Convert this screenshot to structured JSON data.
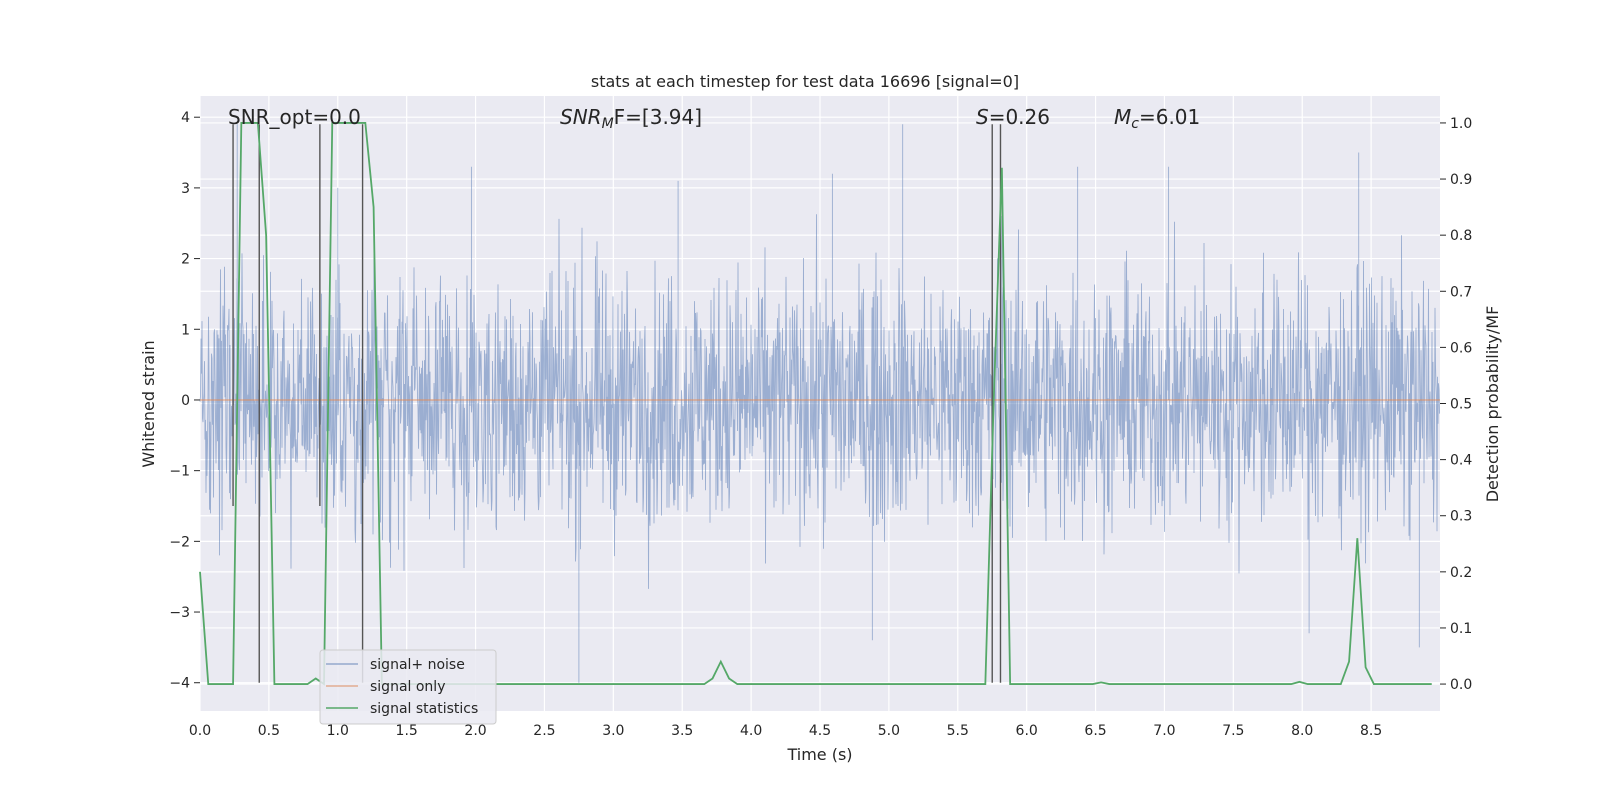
{
  "chart_data": {
    "type": "line",
    "title": "stats at each timestep for test data 16696 [signal=0]",
    "xlabel": "Time (s)",
    "ylabel": "Whitened strain",
    "ylabel_right": "Detection probability/MF",
    "xlim": [
      0.0,
      9.0
    ],
    "ylim": [
      -4.4,
      4.3
    ],
    "ylim_right": [
      -0.048,
      1.048
    ],
    "x_ticks": [
      "0.0",
      "0.5",
      "1.0",
      "1.5",
      "2.0",
      "2.5",
      "3.0",
      "3.5",
      "4.0",
      "4.5",
      "5.0",
      "5.5",
      "6.0",
      "6.5",
      "7.0",
      "7.5",
      "8.0",
      "8.5"
    ],
    "y_ticks": [
      "4",
      "3",
      "2",
      "1",
      "0",
      "−1",
      "−2",
      "−3",
      "−4"
    ],
    "y_ticks_right": [
      "1.0",
      "0.9",
      "0.8",
      "0.7",
      "0.6",
      "0.5",
      "0.4",
      "0.3",
      "0.2",
      "0.1",
      "0.0"
    ],
    "grid": true,
    "background": "#eaeaf2",
    "legend_location": "lower-left",
    "annotations": {
      "snr_opt": "SNR_opt=0.0",
      "snr_mf_base": "SNR",
      "snr_mf_sub": "M",
      "snr_mf_rest": "F=[3.94]",
      "s_italic": "S",
      "s_rest": "=0.26",
      "mc_base": "M",
      "mc_sub": "c",
      "mc_rest": "=6.01"
    },
    "series": [
      {
        "name": "signal+ noise",
        "color": "#4c72b0",
        "axis": "left",
        "description_values": {
          "typical_envelope": [
            -1.7,
            1.9
          ],
          "peaks": [
            {
              "x": 0.27,
              "y": 3.9
            },
            {
              "x": 1.0,
              "y": 3.0
            },
            {
              "x": 1.97,
              "y": 3.3
            },
            {
              "x": 3.47,
              "y": 3.1
            },
            {
              "x": 4.59,
              "y": 3.2
            },
            {
              "x": 5.1,
              "y": 3.9
            },
            {
              "x": 6.37,
              "y": 3.3
            },
            {
              "x": 7.03,
              "y": 3.3
            },
            {
              "x": 8.41,
              "y": 3.5
            },
            {
              "x": 2.75,
              "y": -4.0
            },
            {
              "x": 8.05,
              "y": -3.3
            },
            {
              "x": 8.85,
              "y": -3.5
            },
            {
              "x": 4.88,
              "y": -3.4
            },
            {
              "x": 5.75,
              "y": 2.5
            },
            {
              "x": 5.82,
              "y": 2.6
            }
          ]
        }
      },
      {
        "name": "signal only",
        "color": "#dd8452",
        "axis": "left",
        "x": [
          0.0,
          9.0
        ],
        "y": [
          0.0,
          0.0
        ]
      },
      {
        "name": "signal statistics",
        "color": "#55a868",
        "axis": "right",
        "x": [
          0.0,
          0.06,
          0.12,
          0.18,
          0.24,
          0.3,
          0.36,
          0.42,
          0.48,
          0.54,
          0.6,
          0.66,
          0.72,
          0.78,
          0.84,
          0.9,
          0.96,
          1.02,
          1.08,
          1.14,
          1.2,
          1.26,
          1.32,
          1.38,
          1.44,
          3.6,
          3.66,
          3.72,
          3.78,
          3.84,
          3.9,
          3.96,
          5.04,
          5.7,
          5.76,
          5.82,
          5.88,
          5.94,
          6.48,
          6.54,
          6.6,
          7.92,
          7.98,
          8.04,
          8.1,
          8.22,
          8.28,
          8.34,
          8.4,
          8.46,
          8.52,
          8.58,
          8.64,
          8.94
        ],
        "y": [
          0.2,
          0.0,
          0.0,
          0.0,
          0.0,
          1.0,
          1.0,
          1.0,
          0.8,
          0.0,
          0.0,
          0.0,
          0.0,
          0.0,
          0.01,
          0.0,
          1.0,
          1.0,
          1.0,
          1.0,
          1.0,
          0.85,
          0.0,
          0.0,
          0.0,
          0.0,
          0.0,
          0.01,
          0.04,
          0.01,
          0.0,
          0.0,
          0.0,
          0.0,
          0.5,
          0.92,
          0.0,
          0.0,
          0.0,
          0.003,
          0.0,
          0.0,
          0.004,
          0.0,
          0.0,
          0.0,
          0.0,
          0.04,
          0.26,
          0.03,
          0.0,
          0.0,
          0.0,
          0.0
        ]
      }
    ],
    "vertical_lines": [
      {
        "x": 0.24,
        "y_top": 3.9,
        "y_bottom": -1.5,
        "color": "#555555"
      },
      {
        "x": 0.43,
        "y_top": 3.9,
        "y_bottom": -4.0,
        "color": "#555555"
      },
      {
        "x": 0.87,
        "y_top": 3.9,
        "y_bottom": -1.5,
        "color": "#555555"
      },
      {
        "x": 1.18,
        "y_top": 3.9,
        "y_bottom": -4.0,
        "color": "#555555"
      },
      {
        "x": 5.75,
        "y_top": 3.9,
        "y_bottom": -4.0,
        "color": "#555555"
      },
      {
        "x": 5.81,
        "y_top": 3.9,
        "y_bottom": -4.0,
        "color": "#555555"
      }
    ]
  }
}
